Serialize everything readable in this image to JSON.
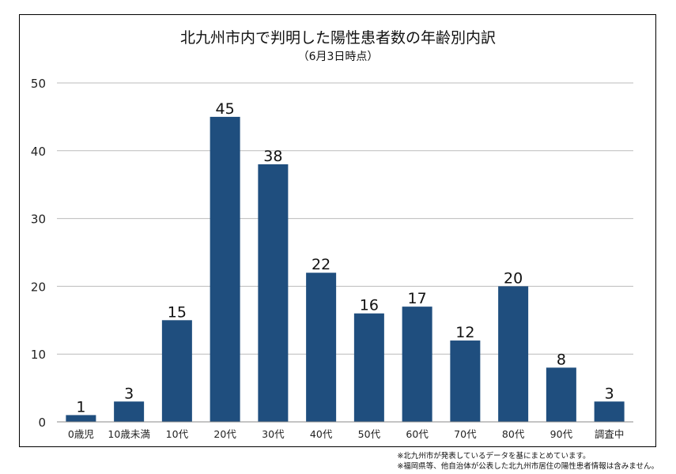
{
  "chart_data": {
    "type": "bar",
    "title": "北九州市内で判明した陽性患者数の年齢別内訳",
    "subtitle": "（6月3日時点）",
    "categories": [
      "0歳児",
      "10歳未満",
      "10代",
      "20代",
      "30代",
      "40代",
      "50代",
      "60代",
      "70代",
      "80代",
      "90代",
      "調査中"
    ],
    "values": [
      1,
      3,
      15,
      45,
      38,
      22,
      16,
      17,
      12,
      20,
      8,
      3
    ],
    "ylim": [
      0,
      50
    ],
    "yticks": [
      0,
      10,
      20,
      30,
      40,
      50
    ],
    "grid": true,
    "bar_color": "#1f4e7e",
    "data_labels": true
  },
  "notes": [
    "※北九州市が発表しているデータを基にまとめています。",
    "※福岡県等、他自治体が公表した北九州市居住の陽性患者情報は含みません。"
  ]
}
